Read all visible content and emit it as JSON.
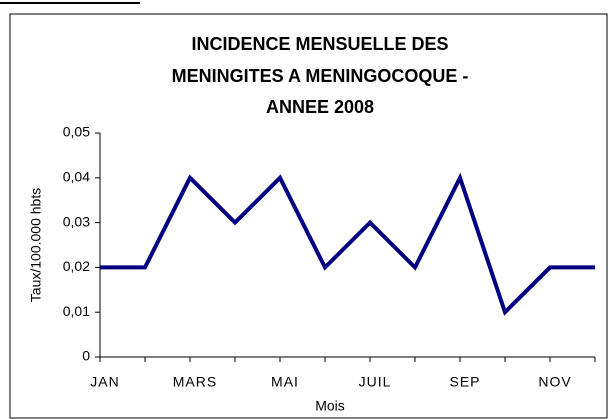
{
  "chart_data": {
    "type": "line",
    "title": [
      "INCIDENCE MENSUELLE DES",
      "MENINGITES  A MENINGOCOQUE -",
      "ANNEE 2008"
    ],
    "x_label": "Mois",
    "y_label": "Taux/100.000 hbts",
    "categories": [
      "JAN",
      null,
      "MARS",
      null,
      "MAI",
      null,
      "JUIL",
      null,
      "SEP",
      null,
      "NOV",
      null
    ],
    "series": [
      {
        "name": "Incidence",
        "color": "#000080",
        "values": [
          0.02,
          0.02,
          0.04,
          0.03,
          0.04,
          0.02,
          0.03,
          0.02,
          0.04,
          0.01,
          0.02,
          0.02
        ]
      }
    ],
    "ylim": [
      0,
      0.05
    ],
    "yticks": [
      0,
      {
        "value": 0.01,
        "label": "0,01"
      },
      {
        "value": 0.02,
        "label": "0,02"
      },
      {
        "value": 0.03,
        "label": "0,03"
      },
      {
        "value": 0.04,
        "label": "0,04"
      },
      {
        "value": 0.05,
        "label": "0,05"
      }
    ],
    "grid": false
  }
}
